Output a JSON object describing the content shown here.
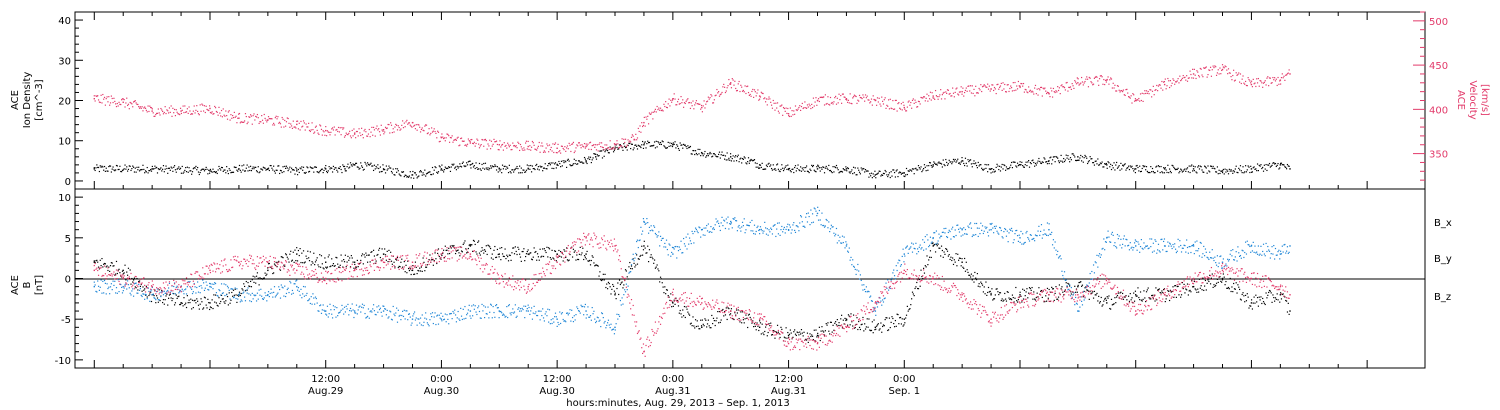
{
  "chart_data": [
    {
      "type": "scatter",
      "panel": "top",
      "ylabel_left": [
        "ACE",
        "Ion Density",
        "[cm^-3]"
      ],
      "ylabel_right": [
        "ACE",
        "Velocity",
        "[km/s]"
      ],
      "y_left_range": [
        -2,
        42
      ],
      "y_left_ticks": [
        0,
        10,
        20,
        30,
        40
      ],
      "y_right_range": [
        310,
        510
      ],
      "y_right_ticks": [
        350,
        400,
        450,
        500
      ],
      "series": [
        {
          "name": "",
          "axis": "left",
          "color": "#000000",
          "x": [
            -12,
            -6,
            0,
            3,
            6,
            9,
            12,
            14,
            15,
            18,
            21,
            24,
            27,
            30,
            33,
            36,
            39,
            40,
            42,
            45,
            48,
            51,
            54,
            56,
            57,
            60,
            63,
            66,
            69,
            72,
            75,
            78,
            81,
            84,
            87,
            90,
            93,
            96,
            99,
            102,
            105,
            108,
            111,
            112
          ],
          "y": [
            3,
            3,
            2.5,
            3,
            3,
            2.5,
            3,
            3,
            4,
            3,
            1.5,
            3,
            4,
            3,
            3,
            4,
            5,
            6,
            8,
            9,
            9,
            7,
            6,
            5,
            4,
            3,
            3,
            3,
            1.5,
            2,
            4,
            5,
            3,
            4,
            5,
            6,
            4,
            3,
            3,
            3,
            2.5,
            3,
            4,
            3
          ]
        },
        {
          "name": "",
          "axis": "right",
          "color": "#e23a6a",
          "x": [
            -12,
            -9,
            -6,
            -3,
            0,
            3,
            6,
            9,
            12,
            15,
            18,
            21,
            24,
            27,
            30,
            33,
            36,
            39,
            42,
            44,
            45,
            48,
            51,
            54,
            57,
            60,
            63,
            66,
            69,
            72,
            75,
            78,
            81,
            84,
            87,
            90,
            93,
            96,
            99,
            102,
            105,
            108,
            111,
            112
          ],
          "y": [
            412,
            408,
            398,
            398,
            401,
            390,
            388,
            383,
            376,
            372,
            377,
            385,
            368,
            362,
            360,
            358,
            356,
            358,
            360,
            366,
            385,
            412,
            402,
            430,
            415,
            395,
            410,
            412,
            410,
            402,
            415,
            420,
            423,
            426,
            418,
            430,
            433,
            410,
            428,
            440,
            445,
            428,
            433,
            440
          ]
        }
      ]
    },
    {
      "type": "scatter",
      "panel": "bottom",
      "ylabel_left": [
        "ACE",
        "B",
        "[nT]"
      ],
      "y_range": [
        -11,
        11
      ],
      "y_ticks": [
        -10,
        -5,
        0,
        5,
        10
      ],
      "zero_line": true,
      "legend": [
        "B_x",
        "B_y",
        "B_z"
      ],
      "legend_placement": "right",
      "series": [
        {
          "name": "B_x",
          "color": "#000000",
          "x": [
            -12,
            -9,
            -6,
            -3,
            0,
            3,
            6,
            9,
            12,
            15,
            18,
            21,
            24,
            27,
            30,
            33,
            36,
            39,
            42,
            45,
            48,
            51,
            54,
            57,
            60,
            63,
            66,
            69,
            72,
            75,
            78,
            81,
            84,
            87,
            90,
            93,
            96,
            99,
            102,
            105,
            108,
            111,
            112
          ],
          "y": [
            2,
            1,
            -2,
            -3,
            -3,
            -2,
            1,
            3,
            2,
            2,
            3,
            1,
            3,
            4,
            3,
            3,
            3,
            3,
            -2,
            4,
            -3,
            -6,
            -4,
            -6,
            -7,
            -7,
            -5,
            -6,
            -5,
            4,
            2,
            -2,
            -2,
            -2,
            -1,
            -3,
            -2,
            -2,
            -1,
            0,
            -3,
            -2,
            -4
          ]
        },
        {
          "name": "B_y",
          "color": "#1f86d6",
          "x": [
            -12,
            -9,
            -6,
            -3,
            0,
            3,
            6,
            9,
            12,
            15,
            18,
            21,
            24,
            27,
            30,
            33,
            36,
            39,
            42,
            45,
            48,
            51,
            54,
            57,
            60,
            63,
            66,
            69,
            72,
            75,
            78,
            81,
            84,
            87,
            90,
            93,
            96,
            99,
            102,
            105,
            108,
            111,
            112
          ],
          "y": [
            -1,
            -1,
            -2,
            -1,
            -1,
            -2,
            -2,
            -1,
            -4,
            -4,
            -4,
            -5,
            -5,
            -4,
            -4,
            -4,
            -5,
            -4,
            -6,
            7,
            3,
            6,
            7,
            6,
            6,
            8,
            4,
            -4,
            3,
            5,
            6,
            6,
            5,
            6,
            -4,
            5,
            4,
            4,
            4,
            2,
            4,
            3,
            4
          ]
        },
        {
          "name": "B_z",
          "color": "#e23a6a",
          "x": [
            -12,
            -9,
            -6,
            -3,
            0,
            3,
            6,
            9,
            12,
            15,
            18,
            21,
            24,
            27,
            30,
            33,
            36,
            39,
            42,
            45,
            48,
            51,
            54,
            57,
            60,
            63,
            66,
            69,
            72,
            75,
            78,
            81,
            84,
            87,
            90,
            93,
            96,
            99,
            102,
            105,
            108,
            111,
            112
          ],
          "y": [
            1,
            0,
            -1,
            -1,
            1,
            2,
            2,
            1,
            0,
            1,
            2,
            2,
            3,
            3,
            0,
            -1,
            2,
            5,
            4,
            -9,
            -2,
            -3,
            -4,
            -5,
            -8,
            -8,
            -6,
            -3,
            1,
            0,
            -2,
            -5,
            -3,
            -2,
            -2,
            0,
            -4,
            -2,
            0,
            1,
            0,
            -1,
            -2
          ]
        }
      ]
    }
  ],
  "x_axis": {
    "range": [
      -14,
      126
    ],
    "ticks": [
      {
        "x": 12,
        "label": "12:00",
        "sub": "Aug.29"
      },
      {
        "x": 24,
        "label": "0:00",
        "sub": "Aug.30"
      },
      {
        "x": 36,
        "label": "12:00",
        "sub": "Aug.30"
      },
      {
        "x": 48,
        "label": "0:00",
        "sub": "Aug.31"
      },
      {
        "x": 60,
        "label": "12:00",
        "sub": "Aug.31"
      },
      {
        "x": 72,
        "label": "0:00",
        "sub": "Sep. 1"
      }
    ],
    "xlabel": "hours:minutes, Aug. 29, 2013 – Sep.  1, 2013"
  },
  "colors": {
    "black": "#000000",
    "pink": "#e23a6a",
    "blue": "#1f86d6"
  }
}
